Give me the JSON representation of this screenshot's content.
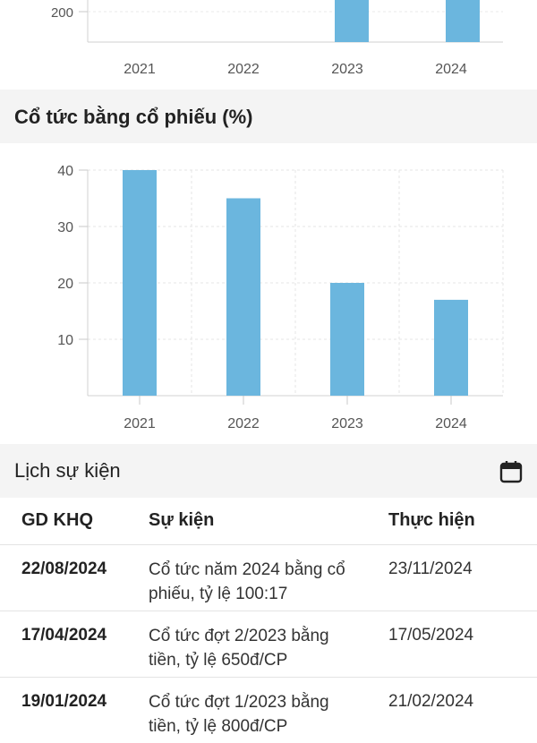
{
  "top_chart": {
    "chart_data": {
      "type": "bar",
      "categories": [
        "2021",
        "2022",
        "2023",
        "2024"
      ],
      "yticks_visible": [
        "200"
      ],
      "values": [
        null,
        null,
        null,
        null
      ],
      "colors": {
        "bar": "#6bb6de"
      }
    }
  },
  "stock_dividend": {
    "title": "Cổ tức bằng cổ phiếu (%)",
    "chart_data": {
      "type": "bar",
      "categories": [
        "2021",
        "2022",
        "2023",
        "2024"
      ],
      "values": [
        40,
        35,
        20,
        17
      ],
      "yticks": [
        "10",
        "20",
        "30",
        "40"
      ],
      "ylim": [
        0,
        40
      ],
      "grid": true,
      "colors": {
        "bar": "#6bb6de",
        "grid": "#e6e6e6"
      }
    }
  },
  "events": {
    "title": "Lịch sự kiện",
    "calendar_icon": "calendar-icon",
    "columns": [
      "GD KHQ",
      "Sự kiện",
      "Thực hiện"
    ],
    "rows": [
      {
        "date": "22/08/2024",
        "event_line1": "Cổ tức năm 2024 bằng cổ",
        "event_line2": "phiếu, tỷ lệ 100:17",
        "exec": "23/11/2024"
      },
      {
        "date": "17/04/2024",
        "event_line1": "Cổ tức đợt 2/2023 bằng",
        "event_line2": "tiền, tỷ lệ 650đ/CP",
        "exec": "17/05/2024"
      },
      {
        "date": "19/01/2024",
        "event_line1": "Cổ tức đợt 1/2023 bằng",
        "event_line2": "tiền, tỷ lệ 800đ/CP",
        "exec": "21/02/2024"
      }
    ]
  }
}
